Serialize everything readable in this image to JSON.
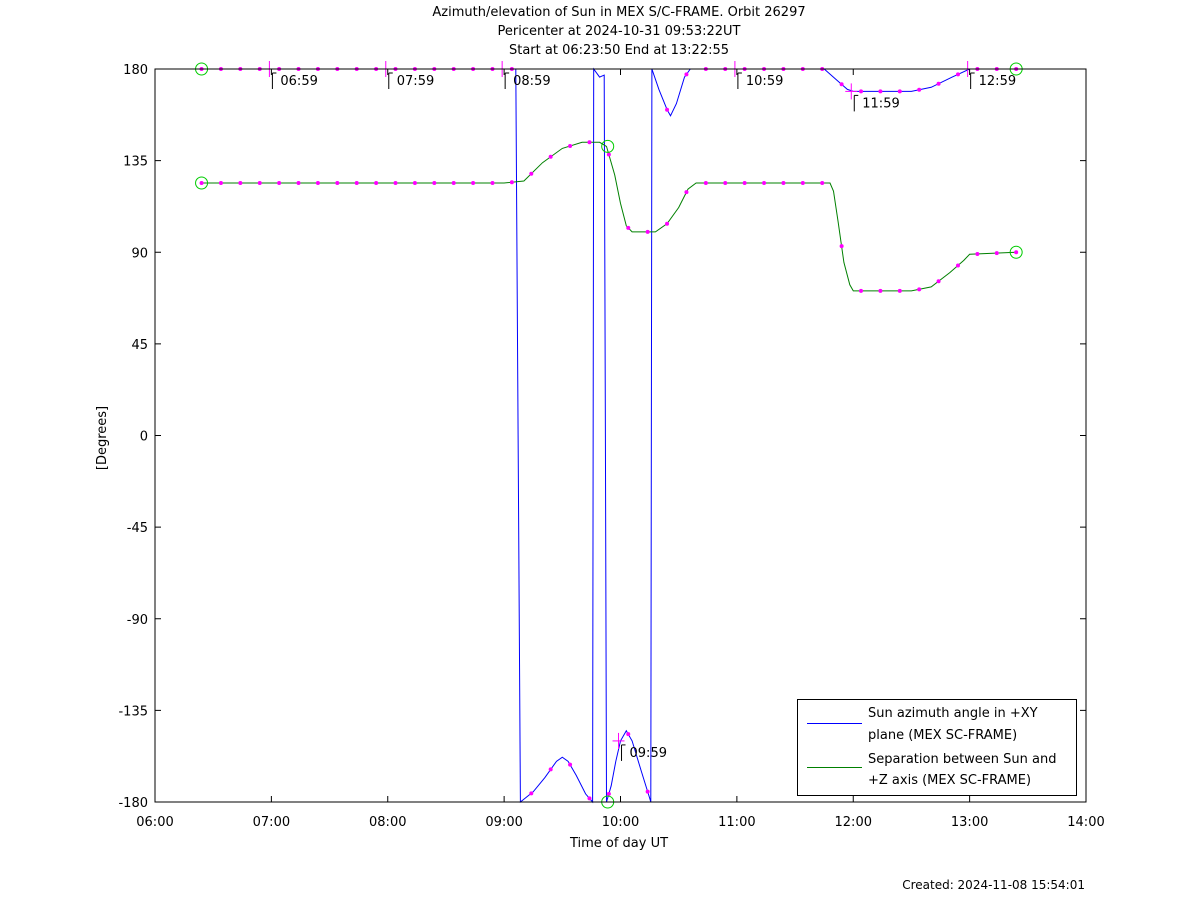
{
  "chart_data": {
    "type": "line",
    "title_lines": [
      "Azimuth/elevation of Sun in MEX S/C-FRAME.  Orbit 26297",
      "Pericenter at 2024-10-31 09:53:22UT",
      "Start at 06:23:50 End at 13:22:55"
    ],
    "xlabel": "Time of day UT",
    "ylabel": "[Degrees]",
    "x_range_hours": [
      6,
      14
    ],
    "ylim": [
      -180,
      180
    ],
    "x_tick_labels": [
      "06:00",
      "07:00",
      "08:00",
      "09:00",
      "10:00",
      "11:00",
      "12:00",
      "13:00",
      "14:00"
    ],
    "y_tick_labels": [
      "180",
      "135",
      "90",
      "45",
      "0",
      "-45",
      "-90",
      "-135",
      "-180"
    ],
    "legend_position": "bottom-right",
    "legend": [
      {
        "line1": "Sun azimuth angle in +XY",
        "line2": "plane (MEX SC-FRAME)",
        "color": "#0000ff"
      },
      {
        "line1": "Separation between Sun and",
        "line2": "+Z axis (MEX SC-FRAME)",
        "color": "#008000"
      }
    ],
    "series": [
      {
        "name": "Sun azimuth angle in +XY plane (MEX SC-FRAME)",
        "color": "#0000ff",
        "points": [
          [
            6.4,
            180
          ],
          [
            6.67,
            180
          ],
          [
            7.0,
            180
          ],
          [
            7.5,
            180
          ],
          [
            8.0,
            180
          ],
          [
            8.5,
            180
          ],
          [
            9.0,
            180
          ],
          [
            9.1,
            180
          ],
          [
            9.12,
            0
          ],
          [
            9.14,
            -180
          ],
          [
            9.25,
            -175
          ],
          [
            9.35,
            -168
          ],
          [
            9.45,
            -160
          ],
          [
            9.5,
            -158
          ],
          [
            9.55,
            -160
          ],
          [
            9.62,
            -167
          ],
          [
            9.7,
            -176
          ],
          [
            9.76,
            -180
          ],
          [
            9.77,
            180
          ],
          [
            9.82,
            176
          ],
          [
            9.86,
            177
          ],
          [
            9.87,
            0
          ],
          [
            9.88,
            -180
          ],
          [
            9.92,
            -172
          ],
          [
            9.96,
            -160
          ],
          [
            10.0,
            -150
          ],
          [
            10.05,
            -145
          ],
          [
            10.1,
            -150
          ],
          [
            10.18,
            -165
          ],
          [
            10.25,
            -178
          ],
          [
            10.26,
            -180
          ],
          [
            10.27,
            180
          ],
          [
            10.33,
            170
          ],
          [
            10.4,
            160
          ],
          [
            10.43,
            157
          ],
          [
            10.48,
            163
          ],
          [
            10.55,
            176
          ],
          [
            10.6,
            180
          ],
          [
            11.0,
            180
          ],
          [
            11.5,
            180
          ],
          [
            11.75,
            180
          ],
          [
            11.85,
            175
          ],
          [
            11.95,
            170
          ],
          [
            12.0,
            169
          ],
          [
            12.5,
            169
          ],
          [
            12.67,
            171
          ],
          [
            12.85,
            176
          ],
          [
            13.0,
            180
          ],
          [
            13.4,
            180
          ]
        ]
      },
      {
        "name": "Separation between Sun and +Z axis (MEX SC-FRAME)",
        "color": "#008000",
        "points": [
          [
            6.4,
            124
          ],
          [
            6.67,
            124
          ],
          [
            7.0,
            124
          ],
          [
            7.5,
            124
          ],
          [
            8.0,
            124
          ],
          [
            8.5,
            124
          ],
          [
            9.0,
            124
          ],
          [
            9.17,
            125
          ],
          [
            9.33,
            134
          ],
          [
            9.5,
            141
          ],
          [
            9.67,
            144
          ],
          [
            9.82,
            144
          ],
          [
            9.88,
            142
          ],
          [
            9.95,
            128
          ],
          [
            10.0,
            114
          ],
          [
            10.05,
            103
          ],
          [
            10.1,
            100
          ],
          [
            10.3,
            100
          ],
          [
            10.4,
            104
          ],
          [
            10.5,
            112
          ],
          [
            10.58,
            121
          ],
          [
            10.65,
            124
          ],
          [
            11.0,
            124
          ],
          [
            11.5,
            124
          ],
          [
            11.8,
            124
          ],
          [
            11.83,
            120
          ],
          [
            11.87,
            105
          ],
          [
            11.92,
            85
          ],
          [
            11.97,
            74
          ],
          [
            12.0,
            71
          ],
          [
            12.5,
            71
          ],
          [
            12.67,
            73
          ],
          [
            12.83,
            80
          ],
          [
            12.95,
            86
          ],
          [
            13.0,
            89
          ],
          [
            13.4,
            90
          ]
        ]
      }
    ],
    "timestamp_labels": [
      {
        "text": "06:59",
        "x": 6.983,
        "y": 180
      },
      {
        "text": "07:59",
        "x": 7.983,
        "y": 180
      },
      {
        "text": "08:59",
        "x": 8.983,
        "y": 180
      },
      {
        "text": "09:59",
        "x": 9.983,
        "y": -150
      },
      {
        "text": "10:59",
        "x": 10.983,
        "y": 180
      },
      {
        "text": "11:59",
        "x": 11.983,
        "y": 169
      },
      {
        "text": "12:59",
        "x": 12.983,
        "y": 180
      }
    ],
    "start_end_circles": [
      [
        6.4,
        180
      ],
      [
        6.4,
        124
      ],
      [
        13.4,
        180
      ],
      [
        13.4,
        90
      ]
    ],
    "pericenter_circles": [
      [
        9.89,
        -180
      ],
      [
        9.89,
        142
      ]
    ],
    "footer": "Created: 2024-11-08 15:54:01"
  }
}
